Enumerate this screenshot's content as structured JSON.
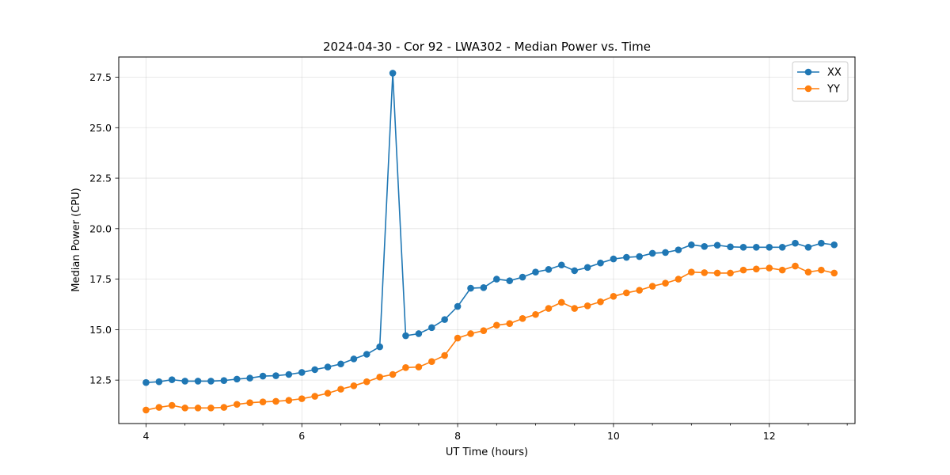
{
  "chart_data": {
    "type": "line",
    "title": "2024-04-30 - Cor 92 - LWA302 - Median Power vs. Time",
    "xlabel": "UT Time (hours)",
    "ylabel": "Median Power (CPU)",
    "xlim": [
      3.65,
      13.1
    ],
    "ylim": [
      10.35,
      28.5
    ],
    "x_ticks": [
      4,
      6,
      8,
      10,
      12
    ],
    "x_tick_labels": [
      "4",
      "6",
      "8",
      "10",
      "12"
    ],
    "x_minor_step": 0.5,
    "y_ticks": [
      12.5,
      15.0,
      17.5,
      20.0,
      22.5,
      25.0,
      27.5
    ],
    "y_tick_labels": [
      "12.5",
      "15.0",
      "17.5",
      "20.0",
      "22.5",
      "25.0",
      "27.5"
    ],
    "grid": true,
    "legend_position": "top-right",
    "x": [
      4.0,
      4.167,
      4.333,
      4.5,
      4.667,
      4.833,
      5.0,
      5.167,
      5.333,
      5.5,
      5.667,
      5.833,
      6.0,
      6.167,
      6.333,
      6.5,
      6.667,
      6.833,
      7.0,
      7.167,
      7.333,
      7.5,
      7.667,
      7.833,
      8.0,
      8.167,
      8.333,
      8.5,
      8.667,
      8.833,
      9.0,
      9.167,
      9.333,
      9.5,
      9.667,
      9.833,
      10.0,
      10.167,
      10.333,
      10.5,
      10.667,
      10.833,
      11.0,
      11.167,
      11.333,
      11.5,
      11.667,
      11.833,
      12.0,
      12.167,
      12.333,
      12.5,
      12.667,
      12.833
    ],
    "series": [
      {
        "name": "XX",
        "color": "#1f77b4",
        "values": [
          12.38,
          12.42,
          12.52,
          12.45,
          12.45,
          12.45,
          12.48,
          12.55,
          12.6,
          12.7,
          12.72,
          12.78,
          12.88,
          13.02,
          13.15,
          13.3,
          13.55,
          13.78,
          14.15,
          27.7,
          14.7,
          14.8,
          15.1,
          15.5,
          16.15,
          17.05,
          17.08,
          17.5,
          17.42,
          17.6,
          17.85,
          17.98,
          18.2,
          17.92,
          18.08,
          18.3,
          18.5,
          18.58,
          18.62,
          18.78,
          18.82,
          18.95,
          19.2,
          19.12,
          19.18,
          19.1,
          19.08,
          19.08,
          19.08,
          19.08,
          19.28,
          19.08,
          19.28,
          19.2
        ]
      },
      {
        "name": "YY",
        "color": "#ff7f0e",
        "values": [
          11.02,
          11.15,
          11.25,
          11.12,
          11.12,
          11.12,
          11.15,
          11.3,
          11.38,
          11.42,
          11.45,
          11.5,
          11.58,
          11.7,
          11.85,
          12.05,
          12.22,
          12.42,
          12.65,
          12.78,
          13.12,
          13.15,
          13.42,
          13.72,
          14.58,
          14.8,
          14.95,
          15.22,
          15.3,
          15.55,
          15.75,
          16.05,
          16.35,
          16.05,
          16.18,
          16.38,
          16.65,
          16.82,
          16.95,
          17.15,
          17.3,
          17.5,
          17.85,
          17.82,
          17.8,
          17.8,
          17.95,
          18.0,
          18.05,
          17.95,
          18.15,
          17.85,
          17.95,
          17.8
        ]
      }
    ]
  }
}
